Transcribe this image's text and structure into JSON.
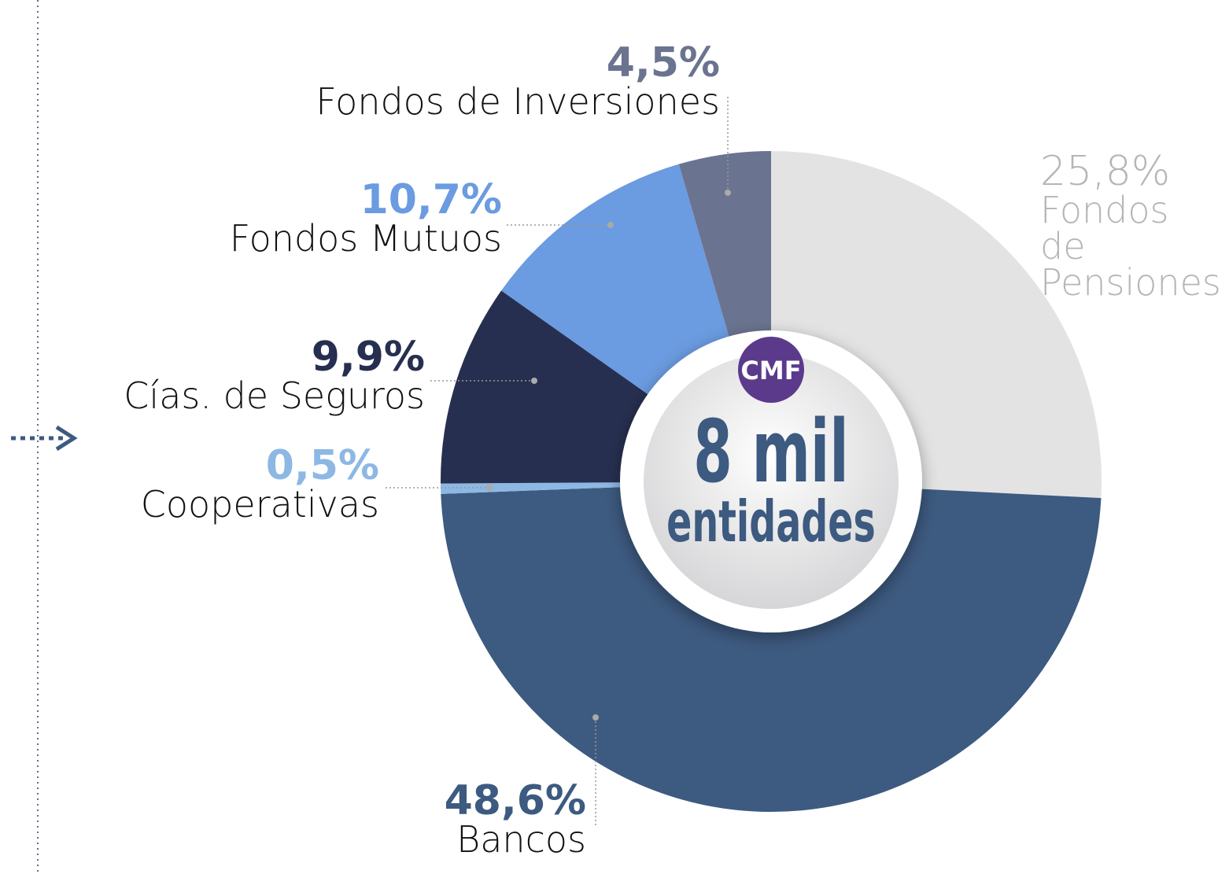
{
  "chart_data": {
    "type": "pie",
    "donut": true,
    "categories": [
      "Fondos de Pensiones",
      "Bancos",
      "Cooperativas",
      "Cías. de Seguros",
      "Fondos Mutuos",
      "Fondos de Inversiones"
    ],
    "values": [
      25.8,
      48.6,
      0.5,
      9.9,
      10.7,
      4.5
    ],
    "value_labels": [
      "25,8%",
      "48,6%",
      "0,5%",
      "9,9%",
      "10,7%",
      "4,5%"
    ],
    "colors": [
      "#e3e3e3",
      "#3d5a80",
      "#8db8e3",
      "#272f50",
      "#6b9be0",
      "#6a738f"
    ],
    "center_logo": "CMF",
    "center_value": "8 mil",
    "center_label": "entidades"
  }
}
